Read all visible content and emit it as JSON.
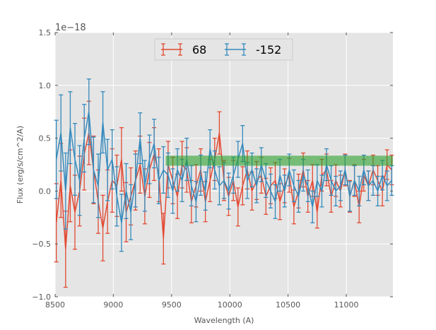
{
  "chart_data": {
    "type": "line",
    "subtype": "errorbar",
    "title": "",
    "xlabel": "Wavelength (A)",
    "ylabel": "Flux (erg/s/cm^2/A)",
    "y_offset_text": "1e−18",
    "xlim": [
      8500,
      11400
    ],
    "ylim": [
      -1.0,
      1.5
    ],
    "xticks": [
      8500,
      9000,
      9500,
      10000,
      10500,
      11000
    ],
    "xtick_labels": [
      "8500",
      "9000",
      "9500",
      "10000",
      "10500",
      "11000"
    ],
    "yticks": [
      -1.0,
      -0.5,
      0.0,
      0.5,
      1.0,
      1.5
    ],
    "ytick_labels": [
      "−1.0",
      "−0.5",
      "0.0",
      "0.5",
      "1.0",
      "1.5"
    ],
    "grid": true,
    "legend_placement": "top-center",
    "x_start": 8510,
    "x_step": 40,
    "band": {
      "xmin": 9450,
      "xmax": 11400,
      "ymin": 0.24,
      "ymax": 0.335,
      "color": "#2ca02c"
    },
    "series": [
      {
        "name": "68",
        "color": "#E24A33",
        "values": [
          -0.3,
          0.1,
          -0.55,
          0.05,
          -0.2,
          0.0,
          0.35,
          0.55,
          0.2,
          -0.1,
          -0.35,
          -0.1,
          0.1,
          0.05,
          0.3,
          -0.2,
          -0.05,
          0.1,
          0.25,
          -0.05,
          0.2,
          0.35,
          0.15,
          -0.45,
          0.25,
          0.1,
          -0.05,
          0.25,
          0.2,
          -0.1,
          0.05,
          0.2,
          -0.1,
          0.1,
          0.3,
          0.55,
          0.1,
          -0.05,
          0.1,
          -0.15,
          0.05,
          0.2,
          0.0,
          0.1,
          0.15,
          -0.05,
          0.05,
          0.1,
          -0.1,
          0.05,
          0.15,
          -0.15,
          0.0,
          0.2,
          -0.05,
          0.1,
          -0.2,
          0.15,
          0.2,
          -0.05,
          0.1,
          0.0,
          0.2,
          -0.05,
          0.1,
          -0.15,
          0.15,
          0.05,
          0.2,
          0.1,
          0.0,
          0.25,
          0.2
        ],
        "errors": [
          0.37,
          0.35,
          0.36,
          0.34,
          0.35,
          0.33,
          0.34,
          0.3,
          0.32,
          0.3,
          0.31,
          0.3,
          0.3,
          0.29,
          0.3,
          0.28,
          0.27,
          0.28,
          0.27,
          0.26,
          0.26,
          0.25,
          0.25,
          0.24,
          0.22,
          0.22,
          0.21,
          0.22,
          0.21,
          0.2,
          0.2,
          0.2,
          0.19,
          0.2,
          0.2,
          0.2,
          0.19,
          0.18,
          0.19,
          0.18,
          0.18,
          0.18,
          0.18,
          0.18,
          0.17,
          0.17,
          0.17,
          0.17,
          0.17,
          0.16,
          0.16,
          0.16,
          0.16,
          0.16,
          0.15,
          0.15,
          0.15,
          0.15,
          0.15,
          0.15,
          0.15,
          0.15,
          0.15,
          0.15,
          0.15,
          0.15,
          0.15,
          0.14,
          0.14,
          0.14,
          0.14,
          0.14,
          0.14
        ]
      },
      {
        "name": "-152",
        "color": "#348ABD",
        "values": [
          0.3,
          0.55,
          0.0,
          0.6,
          0.3,
          0.1,
          0.5,
          0.75,
          0.2,
          0.05,
          0.65,
          0.2,
          0.3,
          -0.05,
          -0.3,
          0.0,
          -0.2,
          0.1,
          0.5,
          0.05,
          0.3,
          0.45,
          0.1,
          0.2,
          0.15,
          0.0,
          0.2,
          0.1,
          0.3,
          0.05,
          -0.1,
          0.15,
          0.0,
          0.4,
          0.2,
          0.05,
          0.1,
          0.0,
          0.15,
          0.3,
          0.45,
          0.1,
          0.2,
          0.05,
          0.25,
          0.1,
          0.0,
          -0.1,
          0.15,
          0.0,
          0.2,
          0.05,
          -0.05,
          0.15,
          0.05,
          -0.15,
          0.1,
          0.0,
          0.25,
          0.1,
          0.0,
          0.05,
          0.2,
          -0.05,
          0.1,
          0.0,
          0.2,
          0.05,
          0.1,
          0.0,
          0.15,
          0.05,
          0.1
        ],
        "errors": [
          0.37,
          0.36,
          0.36,
          0.34,
          0.34,
          0.33,
          0.32,
          0.31,
          0.31,
          0.3,
          0.29,
          0.29,
          0.28,
          0.28,
          0.27,
          0.26,
          0.26,
          0.25,
          0.24,
          0.24,
          0.23,
          0.23,
          0.22,
          0.22,
          0.21,
          0.21,
          0.2,
          0.2,
          0.2,
          0.19,
          0.19,
          0.19,
          0.18,
          0.18,
          0.18,
          0.18,
          0.17,
          0.17,
          0.17,
          0.17,
          0.17,
          0.17,
          0.16,
          0.16,
          0.16,
          0.16,
          0.16,
          0.16,
          0.15,
          0.15,
          0.15,
          0.15,
          0.15,
          0.15,
          0.15,
          0.15,
          0.15,
          0.15,
          0.15,
          0.14,
          0.14,
          0.14,
          0.14,
          0.14,
          0.14,
          0.14,
          0.14,
          0.14,
          0.14,
          0.14,
          0.14,
          0.14,
          0.14
        ]
      }
    ]
  }
}
